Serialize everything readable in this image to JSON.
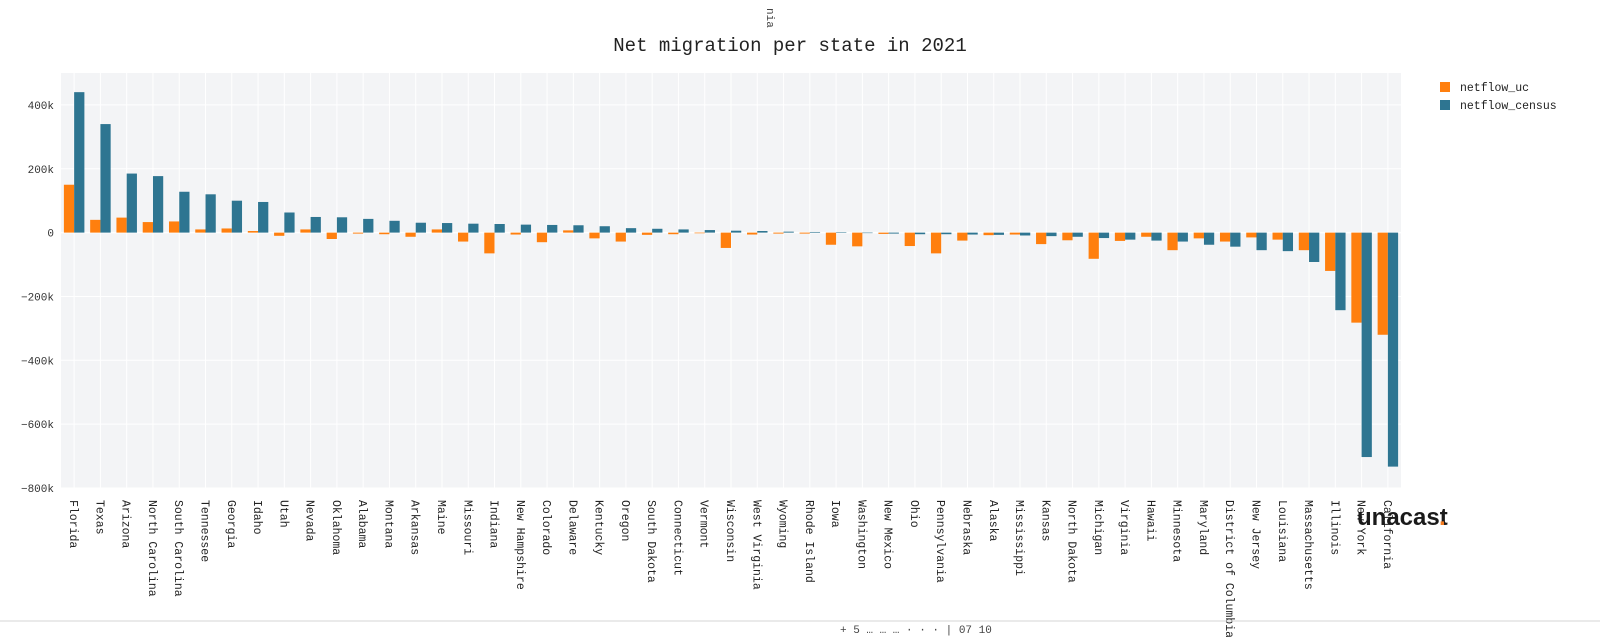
{
  "top_clipped_text": "nia",
  "bottom_clipped_text": "+ 5 … … … · · · | 07 10",
  "logo": {
    "text": "unacast",
    "dot": "."
  },
  "colors": {
    "uc": "#ff7f0e",
    "census": "#2e7591",
    "plot_bg": "#f3f4f6",
    "grid": "#ffffff"
  },
  "chart_data": {
    "type": "bar",
    "title": "Net migration per state in 2021",
    "xlabel": "",
    "ylabel": "",
    "ylim": [
      -800000,
      500000
    ],
    "yticks": [
      400000,
      200000,
      0,
      -200000,
      -400000,
      -600000,
      -800000
    ],
    "ytick_labels": [
      "400k",
      "200k",
      "0",
      "−200k",
      "−400k",
      "−600k",
      "−800k"
    ],
    "grid": true,
    "legend_position": "top-right",
    "categories": [
      "Florida",
      "Texas",
      "Arizona",
      "North Carolina",
      "South Carolina",
      "Tennessee",
      "Georgia",
      "Idaho",
      "Utah",
      "Nevada",
      "Oklahoma",
      "Alabama",
      "Montana",
      "Arkansas",
      "Maine",
      "Missouri",
      "Indiana",
      "New Hampshire",
      "Colorado",
      "Delaware",
      "Kentucky",
      "Oregon",
      "South Dakota",
      "Connecticut",
      "Vermont",
      "Wisconsin",
      "West Virginia",
      "Wyoming",
      "Rhode Island",
      "Iowa",
      "Washington",
      "New Mexico",
      "Ohio",
      "Pennsylvania",
      "Nebraska",
      "Alaska",
      "Mississippi",
      "Kansas",
      "North Dakota",
      "Michigan",
      "Virginia",
      "Hawaii",
      "Minnesota",
      "Maryland",
      "District of Columbia",
      "New Jersey",
      "Louisiana",
      "Massachusetts",
      "Illinois",
      "New York",
      "California"
    ],
    "series": [
      {
        "name": "netflow_uc",
        "values": [
          150000,
          40000,
          47000,
          33000,
          35000,
          10000,
          13000,
          5000,
          -10000,
          10000,
          -20000,
          -3000,
          -5000,
          -13000,
          10000,
          -28000,
          -65000,
          -6000,
          -30000,
          7000,
          -18000,
          -28000,
          -7000,
          -5000,
          -2000,
          -48000,
          -6000,
          -3000,
          -3000,
          -38000,
          -43000,
          -4000,
          -42000,
          -65000,
          -25000,
          -8000,
          -6000,
          -36000,
          -24000,
          -82000,
          -26000,
          -13000,
          -55000,
          -18000,
          -28000,
          -15000,
          -22000,
          -55000,
          -120000,
          -282000,
          -320000
        ]
      },
      {
        "name": "netflow_census",
        "values": [
          440000,
          340000,
          185000,
          177000,
          128000,
          120000,
          100000,
          96000,
          63000,
          49000,
          48000,
          43000,
          37000,
          31000,
          30000,
          28000,
          27000,
          25000,
          24000,
          23000,
          20000,
          14000,
          12000,
          10000,
          8000,
          6000,
          5000,
          3000,
          2000,
          1000,
          -1000,
          -3000,
          -5000,
          -5000,
          -6000,
          -7000,
          -9000,
          -11000,
          -13000,
          -17000,
          -22000,
          -25000,
          -28000,
          -38000,
          -44000,
          -55000,
          -58000,
          -92000,
          -243000,
          -703000,
          -733000
        ]
      }
    ]
  }
}
